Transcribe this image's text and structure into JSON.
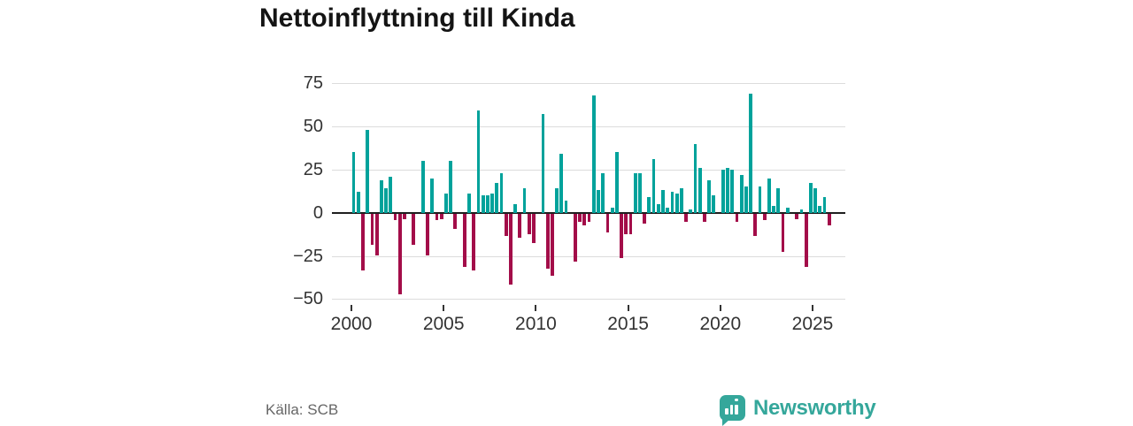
{
  "title": "Nettoinflyttning till Kinda",
  "source": "Källa: SCB",
  "logo": {
    "text": "Newsworthy",
    "color": "#35a79b"
  },
  "colors": {
    "positive": "#00a29b",
    "negative": "#a30d49",
    "grid": "#dcdcdc",
    "zero_axis": "#1f1f1f",
    "axis_text": "#333333"
  },
  "chart_data": {
    "type": "bar",
    "title": "Nettoinflyttning till Kinda",
    "freq": "quarterly",
    "start": "2000-Q1",
    "end": "2025-Q4",
    "ylim": [
      -50,
      75
    ],
    "grid": "horizontal",
    "y_ticks": [
      {
        "value": 75,
        "label": "75"
      },
      {
        "value": 50,
        "label": "50"
      },
      {
        "value": 25,
        "label": "25"
      },
      {
        "value": 0,
        "label": "0"
      },
      {
        "value": -25,
        "label": "−25"
      },
      {
        "value": -50,
        "label": "−50"
      }
    ],
    "x_ticks": [
      "2000",
      "2005",
      "2010",
      "2015",
      "2020",
      "2025"
    ],
    "values": [
      35,
      12,
      -33,
      48,
      -18,
      -24,
      19,
      14,
      21,
      -4,
      -47,
      -3,
      0,
      -18,
      0,
      30,
      -24,
      20,
      -4,
      -3,
      11,
      30,
      -9,
      0,
      -31,
      11,
      -33,
      59,
      10,
      10,
      11,
      17,
      23,
      -13,
      -41,
      5,
      -14,
      14,
      -12,
      -17,
      0,
      57,
      -32,
      -36,
      14,
      34,
      7,
      0,
      -28,
      -5,
      -7,
      -5,
      68,
      13,
      23,
      -11,
      3,
      35,
      -26,
      -12,
      -12,
      23,
      23,
      -6,
      9,
      31,
      5,
      13,
      3,
      12,
      11,
      14,
      -5,
      2,
      40,
      26,
      -5,
      19,
      10,
      0,
      25,
      26,
      25,
      -5,
      22,
      15,
      69,
      -13,
      15,
      -4,
      20,
      4,
      14,
      -22,
      3,
      0,
      -3,
      2,
      -31,
      17,
      14,
      4,
      9,
      -7
    ]
  }
}
